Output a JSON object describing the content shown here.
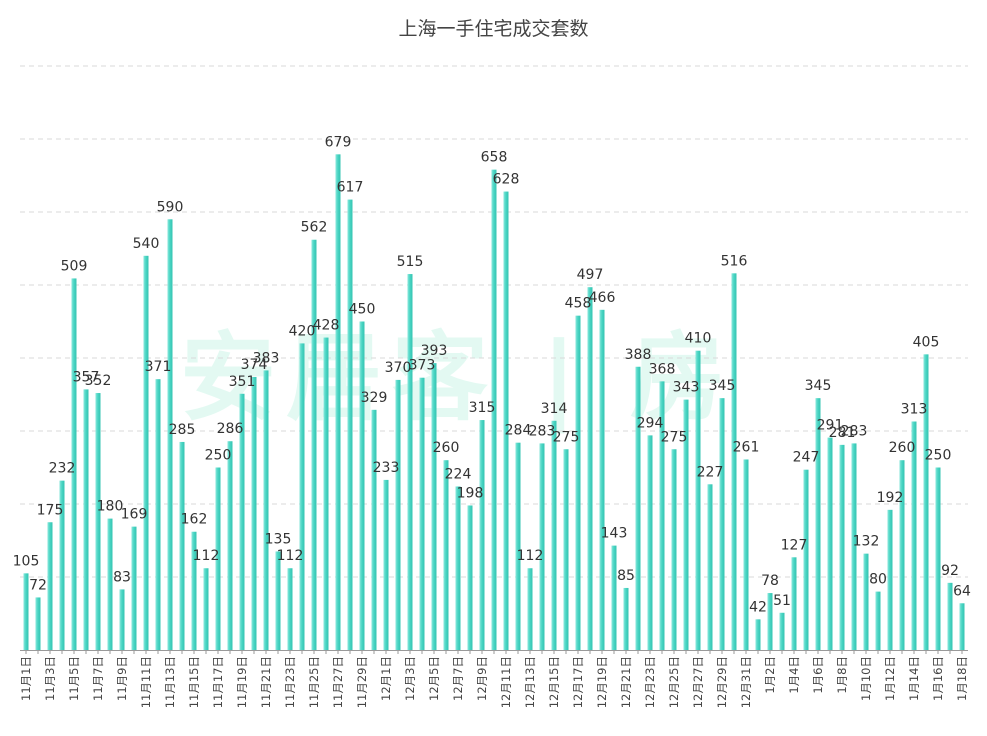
{
  "chart_data": {
    "type": "bar",
    "title": "上海一手住宅成交套数",
    "xlabel": "",
    "ylabel": "",
    "ylim": [
      0,
      800
    ],
    "grid": true,
    "bar_color": "#4fd8c6",
    "categories": [
      "11月1日",
      "11月2日",
      "11月3日",
      "11月4日",
      "11月5日",
      "11月6日",
      "11月7日",
      "11月8日",
      "11月9日",
      "11月10日",
      "11月11日",
      "11月12日",
      "11月13日",
      "11月14日",
      "11月15日",
      "11月16日",
      "11月17日",
      "11月18日",
      "11月19日",
      "11月20日",
      "11月21日",
      "11月22日",
      "11月23日",
      "11月24日",
      "11月25日",
      "11月26日",
      "11月27日",
      "11月28日",
      "11月29日",
      "11月30日",
      "12月1日",
      "12月2日",
      "12月3日",
      "12月4日",
      "12月5日",
      "12月6日",
      "12月7日",
      "12月8日",
      "12月9日",
      "12月10日",
      "12月11日",
      "12月12日",
      "12月13日",
      "12月14日",
      "12月15日",
      "12月16日",
      "12月17日",
      "12月18日",
      "12月19日",
      "12月20日",
      "12月21日",
      "12月22日",
      "12月23日",
      "12月24日",
      "12月25日",
      "12月26日",
      "12月27日",
      "12月28日",
      "12月29日",
      "12月30日",
      "12月31日",
      "1月1日",
      "1月2日",
      "1月3日",
      "1月4日",
      "1月5日",
      "1月6日",
      "1月7日",
      "1月8日",
      "1月9日",
      "1月10日",
      "1月11日",
      "1月12日",
      "1月13日",
      "1月14日",
      "1月15日",
      "1月16日",
      "1月17日",
      "1月18日"
    ],
    "values": [
      105,
      72,
      175,
      232,
      509,
      357,
      352,
      180,
      83,
      169,
      540,
      371,
      590,
      285,
      162,
      112,
      250,
      286,
      351,
      374,
      383,
      135,
      112,
      420,
      562,
      428,
      679,
      617,
      450,
      329,
      233,
      370,
      515,
      373,
      393,
      260,
      224,
      198,
      315,
      658,
      628,
      284,
      112,
      283,
      314,
      275,
      458,
      497,
      466,
      143,
      85,
      388,
      294,
      368,
      275,
      343,
      410,
      227,
      345,
      516,
      261,
      42,
      78,
      51,
      127,
      247,
      345,
      291,
      281,
      283,
      132,
      80,
      192,
      260,
      313,
      405,
      250,
      92,
      64
    ]
  },
  "watermark": "安居客 | 房"
}
